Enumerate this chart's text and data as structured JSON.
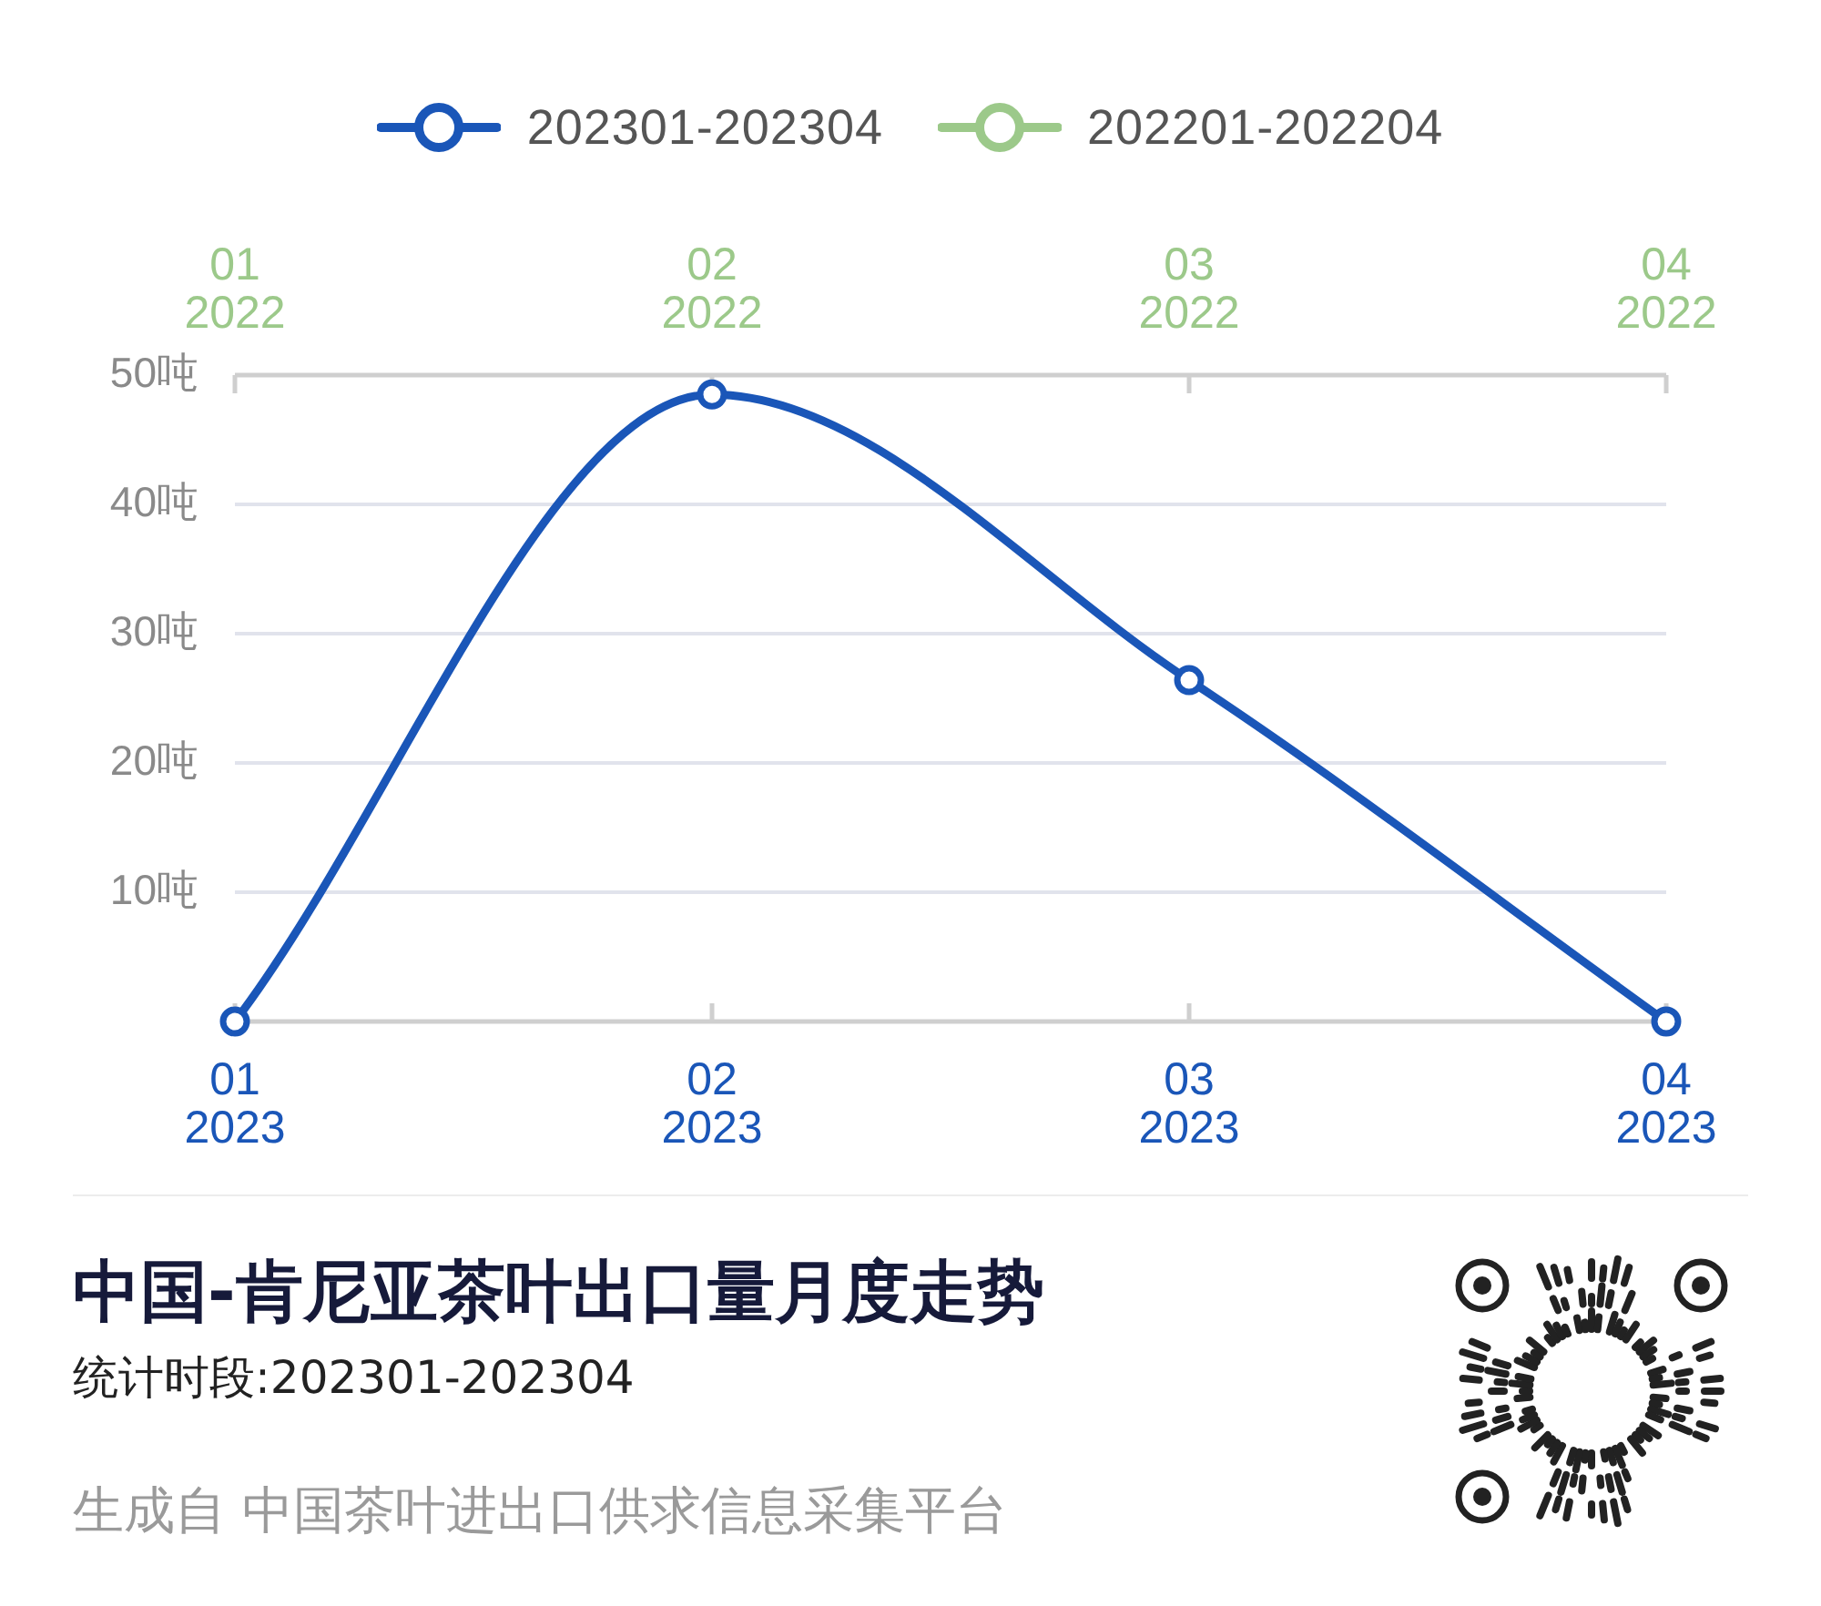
{
  "chart_data": {
    "type": "line",
    "title": "中国-肯尼亚茶叶出口量月度走势",
    "subtitle": "统计时段:202301-202304",
    "annotations": [
      "生成自 中国茶叶进出口供求信息采集平台"
    ],
    "categories": [
      "01\n2023",
      "02\n2023",
      "03\n2023",
      "04\n2023"
    ],
    "series": [
      {
        "name": "202301-202304",
        "color": "#1a56b8",
        "values": [
          0,
          48.5,
          26.4,
          0
        ]
      },
      {
        "name": "202201-202204",
        "color": "#9cc98a",
        "axis": "x2",
        "values": [
          null,
          null,
          null,
          null
        ]
      }
    ],
    "x2lim": [
      "2022-01",
      "2022-04"
    ],
    "x2ticks": [
      {
        "value": "2022-01",
        "label": "01\n2022"
      },
      {
        "value": "2022-02",
        "label": "02\n2022"
      },
      {
        "value": "2022-03",
        "label": "03\n2022"
      },
      {
        "value": "2022-04",
        "label": "04\n2022"
      }
    ],
    "ylim": [
      0,
      50
    ],
    "yticks": [
      {
        "value": 0,
        "label": null
      },
      {
        "value": 10,
        "label": "10吨"
      },
      {
        "value": 20,
        "label": "20吨"
      },
      {
        "value": 30,
        "label": "30吨"
      },
      {
        "value": 40,
        "label": "40吨"
      },
      {
        "value": 50,
        "label": "50吨"
      }
    ],
    "grid": "y",
    "legend": "top",
    "marker": "circle",
    "line_style": "solid"
  }
}
